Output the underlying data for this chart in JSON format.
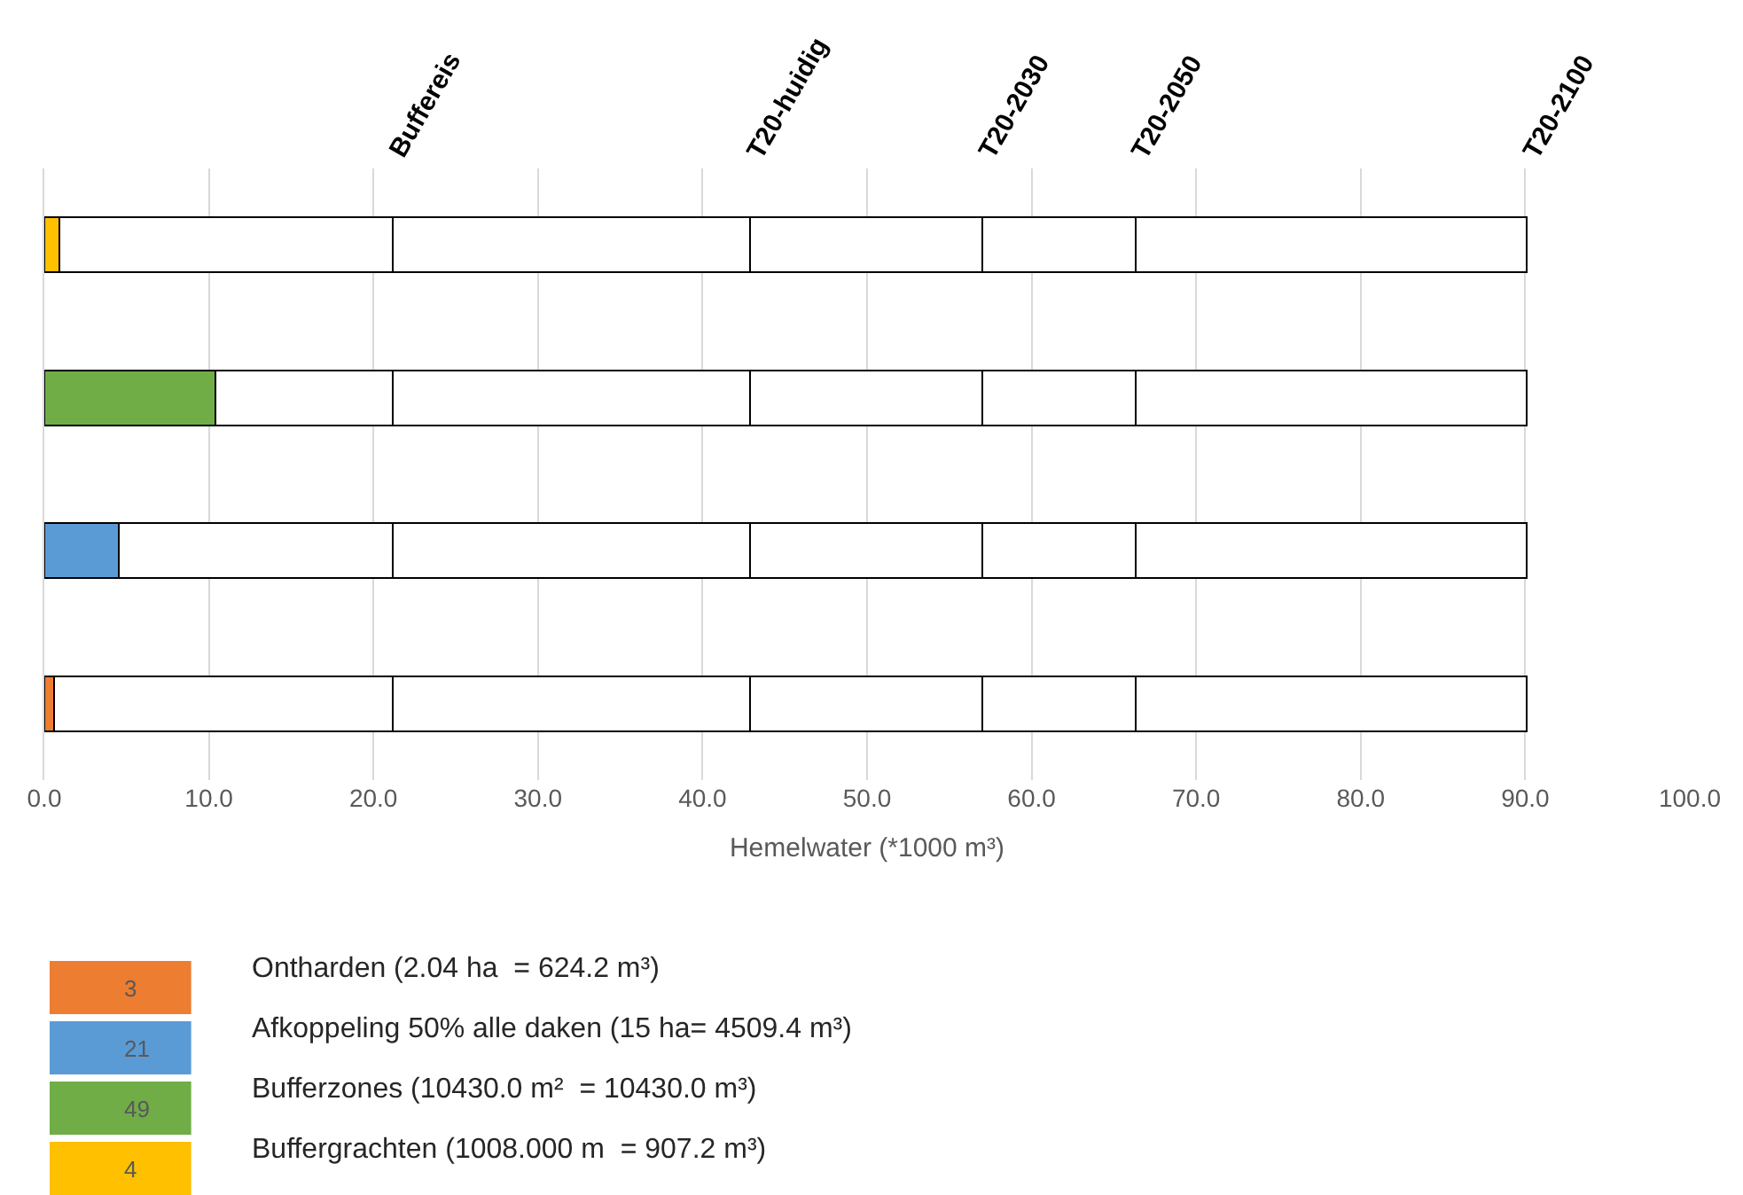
{
  "chart_data": {
    "type": "bar",
    "orientation": "horizontal",
    "stacked": true,
    "categories": [
      null,
      null,
      null,
      null
    ],
    "xlabel": "Hemelwater (*1000 m³)",
    "xlim": [
      0,
      100
    ],
    "xticks": [
      {
        "value": 0,
        "label": "0.0"
      },
      {
        "value": 10,
        "label": "10.0"
      },
      {
        "value": 20,
        "label": "20.0"
      },
      {
        "value": 30,
        "label": "30.0"
      },
      {
        "value": 40,
        "label": "40.0"
      },
      {
        "value": 50,
        "label": "50.0"
      },
      {
        "value": 60,
        "label": "60.0"
      },
      {
        "value": 70,
        "label": "70.0"
      },
      {
        "value": 80,
        "label": "80.0"
      },
      {
        "value": 90,
        "label": "90.0"
      },
      {
        "value": 100,
        "label": "100.0"
      }
    ],
    "grid": "x",
    "legend": "bottom left",
    "series": [
      {
        "name": "Buffergrachten (1008.000 m  = 907.2 m³)",
        "color": "#ffc000",
        "values": [
          0.9,
          null,
          null,
          null
        ]
      },
      {
        "name": "Bufferzones (10430.0 m²  = 10430.0 m³)",
        "color": "#70ad47",
        "values": [
          null,
          10.4,
          null,
          null
        ]
      },
      {
        "name": "Afkoppeling 50% alle daken (15 ha= 4509.4 m³)",
        "color": "#5b9bd5",
        "values": [
          null,
          null,
          4.5,
          null
        ]
      },
      {
        "name": "Ontharden (2.04 ha  = 624.2 m³)",
        "color": "#ed7d31",
        "values": [
          null,
          null,
          null,
          0.6
        ]
      },
      {
        "color": "#ffffff",
        "values": [
          20.3,
          10.8,
          16.7,
          20.6
        ]
      },
      {
        "color": "#ffffff",
        "values": [
          21.7,
          21.7,
          21.7,
          21.7
        ]
      },
      {
        "color": "#ffffff",
        "values": [
          14.1,
          14.1,
          14.1,
          14.1
        ]
      },
      {
        "color": "#ffffff",
        "values": [
          9.3,
          9.3,
          9.3,
          9.3
        ]
      },
      {
        "color": "#ffffff",
        "values": [
          23.8,
          23.8,
          23.8,
          23.8
        ]
      }
    ],
    "annotations": [
      "Buffereis",
      "T20-huidig",
      "T20-2030",
      "T20-2050",
      "T20-2100",
      "4",
      "49",
      "21",
      "3"
    ]
  }
}
